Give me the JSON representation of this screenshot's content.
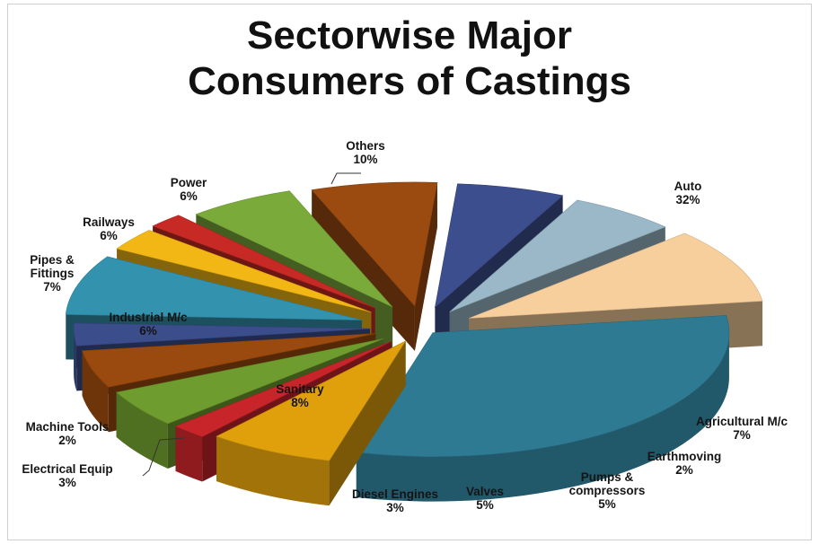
{
  "chart_data": {
    "type": "pie",
    "title": "Sectorwise Major Consumers of Castings",
    "title_lines": [
      "Sectorwise Major",
      "Consumers of Castings"
    ],
    "unit": "%",
    "legend": "none",
    "slices": [
      {
        "name": "Auto",
        "name_lines": [
          "Auto"
        ],
        "value": 32,
        "value_label": "32%",
        "color": "#2e7a93"
      },
      {
        "name": "Agricultural M/c",
        "name_lines": [
          "Agricultural M/c"
        ],
        "value": 7,
        "value_label": "7%",
        "color": "#e0a00c"
      },
      {
        "name": "Earthmoving",
        "name_lines": [
          "Earthmoving"
        ],
        "value": 2,
        "value_label": "2%",
        "color": "#c8252b"
      },
      {
        "name": "Pumps & compressors",
        "name_lines": [
          "Pumps &",
          "compressors"
        ],
        "value": 5,
        "value_label": "5%",
        "color": "#6f9c2e"
      },
      {
        "name": "Valves",
        "name_lines": [
          "Valves"
        ],
        "value": 5,
        "value_label": "5%",
        "color": "#9a4a0e"
      },
      {
        "name": "Diesel Engines",
        "name_lines": [
          "Diesel Engines"
        ],
        "value": 3,
        "value_label": "3%",
        "color": "#3b4d8a"
      },
      {
        "name": "Sanitary",
        "name_lines": [
          "Sanitary"
        ],
        "value": 8,
        "value_label": "8%",
        "color": "#3392ad"
      },
      {
        "name": "Electrical Equip",
        "name_lines": [
          "Electrical Equip"
        ],
        "value": 3,
        "value_label": "3%",
        "color": "#f2b714"
      },
      {
        "name": "Machine Tools",
        "name_lines": [
          "Machine Tools"
        ],
        "value": 2,
        "value_label": "2%",
        "color": "#c72a25"
      },
      {
        "name": "Industrial M/c",
        "name_lines": [
          "Industrial M/c"
        ],
        "value": 6,
        "value_label": "6%",
        "color": "#7aaa3a"
      },
      {
        "name": "Pipes & Fittings",
        "name_lines": [
          "Pipes &",
          "Fittings"
        ],
        "value": 7,
        "value_label": "7%",
        "color": "#9b4a10"
      },
      {
        "name": "Railways",
        "name_lines": [
          "Railways"
        ],
        "value": 6,
        "value_label": "6%",
        "color": "#3c4e8e"
      },
      {
        "name": "Power",
        "name_lines": [
          "Power"
        ],
        "value": 6,
        "value_label": "6%",
        "color": "#9ab8c8"
      },
      {
        "name": "Others",
        "name_lines": [
          "Others"
        ],
        "value": 10,
        "value_label": "10%",
        "color": "#f7cf9c"
      }
    ]
  }
}
